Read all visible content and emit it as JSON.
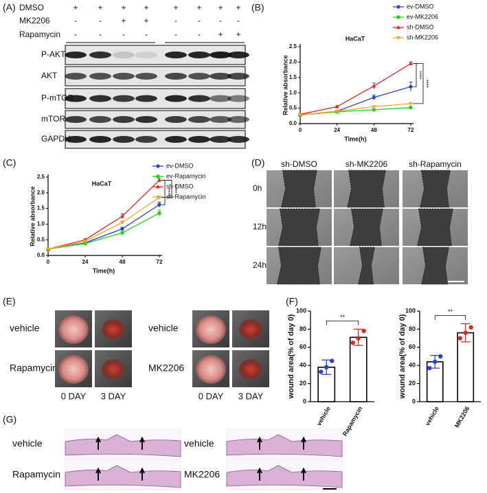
{
  "panels": {
    "letters": [
      "(A)",
      "(B)",
      "(C)",
      "(D)",
      "(E)",
      "(F)",
      "(G)"
    ],
    "blot": {
      "treatments": [
        {
          "name": "DMSO",
          "signs": [
            "+",
            "+",
            "+",
            "+",
            "+",
            "+",
            "+",
            "+"
          ]
        },
        {
          "name": "MK2206",
          "signs": [
            "-",
            "-",
            "+",
            "+",
            "-",
            "-",
            "-",
            "-"
          ]
        },
        {
          "name": "Rapamycin",
          "signs": [
            "-",
            "-",
            "-",
            "-",
            "-",
            "-",
            "+",
            "+"
          ]
        }
      ],
      "proteins": [
        "P-AKT",
        "AKT",
        "P-mTOR",
        "mTOR",
        "GAPDH"
      ]
    },
    "migration": {
      "columns": [
        "sh-DMSO",
        "sh-MK2206",
        "sh-Rapamycin"
      ],
      "rows": [
        "0h",
        "12h",
        "24h"
      ]
    },
    "wound": {
      "groups": [
        {
          "rows": [
            "vehicle",
            "Rapamycin"
          ],
          "days": [
            "0 DAY",
            "3 DAY"
          ]
        },
        {
          "rows": [
            "vehicle",
            "MK2206"
          ],
          "days": [
            "0 DAY",
            "3 DAY"
          ]
        }
      ]
    },
    "histology": {
      "groups": [
        [
          "vehicle",
          "Rapamycin"
        ],
        [
          "vehicle",
          "MK2206"
        ]
      ]
    }
  },
  "chart_data": [
    {
      "type": "line",
      "title": "HaCaT",
      "xlabel": "Time(h)",
      "ylabel": "Relative absorbance",
      "x": [
        0,
        24,
        48,
        72
      ],
      "xlim": [
        0,
        72
      ],
      "xticks": [
        0,
        24,
        48,
        72
      ],
      "ylim": [
        0,
        2.5
      ],
      "yticks": [
        {
          "value": 0,
          "label": "0.0"
        },
        0.5,
        {
          "value": 1,
          "label": "1.0"
        },
        1.5,
        {
          "value": 2,
          "label": "2.0"
        },
        2.5
      ],
      "series": [
        {
          "name": "ev-DMSO",
          "color": "#2b3fe0",
          "values": [
            0.28,
            0.4,
            0.85,
            1.2
          ],
          "errors": [
            0.02,
            0.03,
            0.08,
            0.15
          ]
        },
        {
          "name": "ev-MK2206",
          "color": "#1fd11f",
          "values": [
            0.28,
            0.38,
            0.45,
            0.52
          ],
          "errors": [
            0.02,
            0.02,
            0.03,
            0.04
          ]
        },
        {
          "name": "sh-DMSO",
          "color": "#e8231f",
          "values": [
            0.3,
            0.55,
            1.22,
            1.95
          ],
          "errors": [
            0.02,
            0.03,
            0.1,
            0.05
          ]
        },
        {
          "name": "sh-MK2206",
          "color": "#f5a623",
          "values": [
            0.28,
            0.4,
            0.55,
            0.65
          ],
          "errors": [
            0.02,
            0.02,
            0.03,
            0.03
          ]
        }
      ],
      "significance": [
        "****",
        "****"
      ]
    },
    {
      "type": "line",
      "title": "HaCaT",
      "xlabel": "Time(h)",
      "ylabel": "Relative absorbance",
      "x": [
        0,
        24,
        48,
        72
      ],
      "xlim": [
        0,
        72
      ],
      "xticks": [
        0,
        24,
        48,
        72
      ],
      "ylim": [
        0,
        2.5
      ],
      "yticks": [
        {
          "value": 0,
          "label": "0.0"
        },
        0.5,
        {
          "value": 1,
          "label": "1.0"
        },
        1.5,
        {
          "value": 2,
          "label": "2.0"
        },
        2.5
      ],
      "series": [
        {
          "name": "ev-DMSO",
          "color": "#2b3fe0",
          "values": [
            0.2,
            0.4,
            0.85,
            1.62
          ],
          "errors": [
            0.02,
            0.03,
            0.05,
            0.08
          ]
        },
        {
          "name": "ev-Rapamycin",
          "color": "#1fd11f",
          "values": [
            0.2,
            0.38,
            0.72,
            1.35
          ],
          "errors": [
            0.02,
            0.03,
            0.05,
            0.1
          ]
        },
        {
          "name": "sh-DMSO",
          "color": "#e8231f",
          "values": [
            0.2,
            0.5,
            1.25,
            2.4
          ],
          "errors": [
            0.02,
            0.03,
            0.08,
            0.05
          ]
        },
        {
          "name": "sh-Rapamycin",
          "color": "#f5a623",
          "values": [
            0.2,
            0.45,
            1.05,
            1.85
          ],
          "errors": [
            0.02,
            0.03,
            0.05,
            0.05
          ]
        }
      ],
      "significance": [
        "****",
        "****"
      ]
    },
    {
      "type": "bar",
      "ylabel": "wound area(% of day 0)",
      "categories": [
        "vehicle",
        "Rapamycin"
      ],
      "values": [
        38,
        71
      ],
      "errors": [
        8,
        9
      ],
      "points": [
        [
          33,
          38,
          45
        ],
        [
          65,
          70,
          78
        ]
      ],
      "point_colors": [
        "#2b3fe0",
        "#e8231f"
      ],
      "color": "#000000",
      "ylim": [
        0,
        100
      ],
      "yticks": [
        0,
        20,
        40,
        60,
        80,
        100
      ],
      "significance": "**"
    },
    {
      "type": "bar",
      "ylabel": "wound area(% of day 0)",
      "categories": [
        "vehicle",
        "MK2206"
      ],
      "values": [
        44,
        76
      ],
      "errors": [
        7,
        10
      ],
      "points": [
        [
          37,
          44,
          50
        ],
        [
          70,
          76,
          82
        ]
      ],
      "point_colors": [
        "#2b3fe0",
        "#e8231f"
      ],
      "color": "#000000",
      "ylim": [
        0,
        100
      ],
      "yticks": [
        0,
        20,
        40,
        60,
        80,
        100
      ],
      "significance": "**"
    }
  ]
}
